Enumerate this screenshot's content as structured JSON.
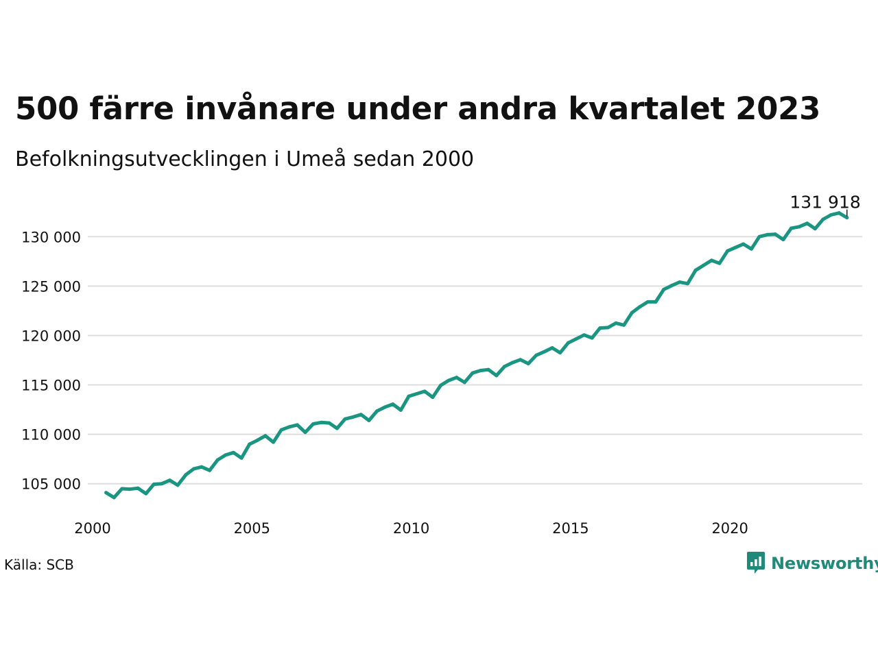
{
  "chart_data": {
    "type": "line",
    "title": "500 färre invånare under andra kvartalet 2023",
    "subtitle": "Befolkningsutvecklingen i Umeå sedan 2000",
    "xlabel": "",
    "ylabel": "",
    "xlim": [
      2000,
      2024
    ],
    "ylim": [
      102000,
      133000
    ],
    "x_ticks": [
      2000,
      2005,
      2010,
      2015,
      2020
    ],
    "x_tick_labels": [
      "2000",
      "2005",
      "2010",
      "2015",
      "2020"
    ],
    "y_ticks": [
      105000,
      110000,
      115000,
      120000,
      125000,
      130000
    ],
    "y_tick_labels": [
      "105 000",
      "110 000",
      "115 000",
      "120 000",
      "125 000",
      "130 000"
    ],
    "grid": true,
    "series": [
      {
        "color": "#1a9582",
        "x": [
          2000.25,
          2000.5,
          2000.75,
          2001.0,
          2001.25,
          2001.5,
          2001.75,
          2002.0,
          2002.25,
          2002.5,
          2002.75,
          2003.0,
          2003.25,
          2003.5,
          2003.75,
          2004.0,
          2004.25,
          2004.5,
          2004.75,
          2005.0,
          2005.25,
          2005.5,
          2005.75,
          2006.0,
          2006.25,
          2006.5,
          2006.75,
          2007.0,
          2007.25,
          2007.5,
          2007.75,
          2008.0,
          2008.25,
          2008.5,
          2008.75,
          2009.0,
          2009.25,
          2009.5,
          2009.75,
          2010.0,
          2010.25,
          2010.5,
          2010.75,
          2011.0,
          2011.25,
          2011.5,
          2011.75,
          2012.0,
          2012.25,
          2012.5,
          2012.75,
          2013.0,
          2013.25,
          2013.5,
          2013.75,
          2014.0,
          2014.25,
          2014.5,
          2014.75,
          2015.0,
          2015.25,
          2015.5,
          2015.75,
          2016.0,
          2016.25,
          2016.5,
          2016.75,
          2017.0,
          2017.25,
          2017.5,
          2017.75,
          2018.0,
          2018.25,
          2018.5,
          2018.75,
          2019.0,
          2019.25,
          2019.5,
          2019.75,
          2020.0,
          2020.25,
          2020.5,
          2020.75,
          2021.0,
          2021.25,
          2021.5,
          2021.75,
          2022.0,
          2022.25,
          2022.5,
          2022.75,
          2023.0,
          2023.25,
          2023.5
        ],
        "values": [
          104100,
          103600,
          104500,
          104450,
          104550,
          104000,
          104950,
          105000,
          105350,
          104850,
          105900,
          106500,
          106700,
          106350,
          107400,
          107900,
          108150,
          107600,
          109000,
          109400,
          109850,
          109200,
          110450,
          110750,
          110950,
          110200,
          111050,
          111200,
          111150,
          110600,
          111550,
          111750,
          112000,
          111400,
          112350,
          112750,
          113050,
          112450,
          113850,
          114100,
          114350,
          113750,
          114950,
          115450,
          115750,
          115250,
          116200,
          116450,
          116550,
          115950,
          116850,
          117250,
          117550,
          117150,
          118000,
          118350,
          118750,
          118250,
          119250,
          119650,
          120050,
          119750,
          120750,
          120800,
          121250,
          121050,
          122300,
          122900,
          123400,
          123400,
          124650,
          125050,
          125400,
          125250,
          126600,
          127100,
          127600,
          127300,
          128550,
          128900,
          129250,
          128750,
          130000,
          130200,
          130250,
          129700,
          130850,
          131000,
          131350,
          130800,
          131750,
          132200,
          132400,
          131918
        ]
      }
    ],
    "annotations": [
      {
        "text": "131 918",
        "x": 2023.5,
        "y": 131918
      }
    ]
  },
  "source": "Källa: SCB",
  "brand": {
    "name": "Newsworthy",
    "icon": "newsworthy-logo-icon",
    "color": "#1f8a79"
  }
}
